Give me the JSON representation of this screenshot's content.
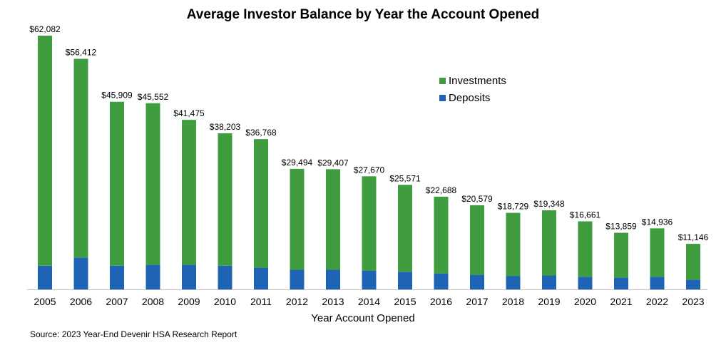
{
  "chart_data": {
    "type": "bar",
    "stacked": true,
    "title": "Average Investor Balance by Year the Account Opened",
    "xlabel": "Year Account Opened",
    "ylabel": "",
    "categories": [
      "2005",
      "2006",
      "2007",
      "2008",
      "2009",
      "2010",
      "2011",
      "2012",
      "2013",
      "2014",
      "2015",
      "2016",
      "2017",
      "2018",
      "2019",
      "2020",
      "2021",
      "2022",
      "2023"
    ],
    "series": [
      {
        "name": "Deposits",
        "color": "#1f63b4",
        "values": [
          5800,
          7800,
          5800,
          6000,
          6000,
          5800,
          5300,
          4800,
          4800,
          4600,
          4300,
          3900,
          3600,
          3300,
          3400,
          3100,
          2900,
          3100,
          2400
        ]
      },
      {
        "name": "Investments",
        "color": "#3f9d3f",
        "values": [
          56282,
          48612,
          40109,
          39552,
          35475,
          32403,
          31468,
          24694,
          24607,
          23070,
          21271,
          18788,
          16979,
          15429,
          15948,
          13561,
          10959,
          11836,
          8746
        ]
      }
    ],
    "totals": [
      62082,
      56412,
      45909,
      45552,
      41475,
      38203,
      36768,
      29494,
      29407,
      27670,
      25571,
      22688,
      20579,
      18729,
      19348,
      16661,
      13859,
      14936,
      11146
    ],
    "total_labels": [
      "$62,082",
      "$56,412",
      "$45,909",
      "$45,552",
      "$41,475",
      "$38,203",
      "$36,768",
      "$29,494",
      "$29,407",
      "$27,670",
      "$25,571",
      "$22,688",
      "$20,579",
      "$18,729",
      "$19,348",
      "$16,661",
      "$13,859",
      "$14,936",
      "$11,146"
    ],
    "ylim": [
      0,
      62082
    ],
    "grid": false,
    "legend": {
      "position": "top-right",
      "order": [
        "Investments",
        "Deposits"
      ]
    }
  },
  "source": "Source: 2023 Year-End Devenir HSA Research Report"
}
